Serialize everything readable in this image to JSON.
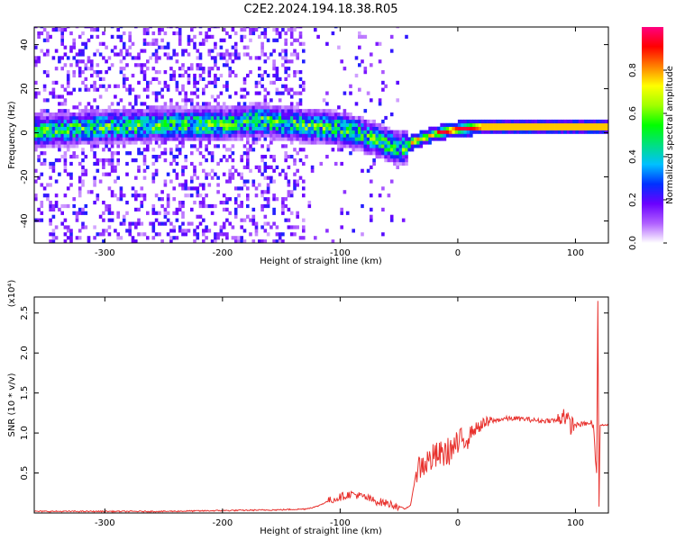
{
  "title": "C2E2.2024.194.18.38.R05",
  "chart_data": [
    {
      "type": "heatmap",
      "xlabel": "Height of straight line (km)",
      "ylabel": "Frequency (Hz)",
      "xlim": [
        -360,
        128
      ],
      "ylim": [
        -50,
        48
      ],
      "xticks": [
        -300,
        -200,
        -100,
        0,
        100
      ],
      "yticks": [
        -40,
        -20,
        0,
        20,
        40
      ],
      "colorbar": {
        "label": "Normalized spectral amplitude",
        "range": [
          0,
          1
        ],
        "ticks": [
          0.0,
          0.2,
          0.4,
          0.6,
          0.8
        ],
        "colors": [
          "#ffffff",
          "#b060ff",
          "#6a00ff",
          "#0030ff",
          "#00c0ff",
          "#00e080",
          "#00ff00",
          "#a0ff00",
          "#ffff00",
          "#ff8000",
          "#ff0000",
          "#ff0080"
        ]
      },
      "ridge": {
        "x": [
          -360,
          -300,
          -250,
          -200,
          -170,
          -140,
          -120,
          -100,
          -80,
          -60,
          -50,
          -45,
          -40,
          -30,
          -20,
          -10,
          0,
          20,
          50,
          80,
          100,
          120,
          128
        ],
        "frequency": [
          0,
          2,
          3,
          3,
          5,
          3,
          2,
          1,
          -2,
          -6,
          -8,
          -7,
          -5,
          -3,
          -1,
          0,
          1,
          2,
          2,
          2,
          2,
          2,
          2
        ]
      }
    },
    {
      "type": "line",
      "xlabel": "Height of straight line (km)",
      "ylabel": "SNR (10 * v/v)",
      "y_multiplier": "(x10⁴)",
      "xlim": [
        -360,
        128
      ],
      "ylim": [
        0,
        2.7
      ],
      "xticks": [
        -300,
        -200,
        -100,
        0,
        100
      ],
      "yticks": [
        0.5,
        1.0,
        1.5,
        2.0,
        2.5
      ],
      "series": [
        {
          "color": "#e8322e",
          "x": [
            -360,
            -250,
            -200,
            -150,
            -130,
            -120,
            -110,
            -100,
            -90,
            -80,
            -70,
            -60,
            -50,
            -45,
            -40,
            -35,
            -30,
            -25,
            -20,
            -10,
            0,
            10,
            20,
            30,
            40,
            50,
            60,
            70,
            80,
            85,
            90,
            95,
            100,
            110,
            115,
            118,
            119,
            120,
            121,
            125,
            128
          ],
          "values": [
            0.02,
            0.02,
            0.03,
            0.04,
            0.05,
            0.08,
            0.15,
            0.2,
            0.24,
            0.2,
            0.15,
            0.12,
            0.08,
            0.05,
            0.1,
            0.55,
            0.6,
            0.65,
            0.7,
            0.75,
            0.85,
            1.0,
            1.1,
            1.15,
            1.18,
            1.18,
            1.17,
            1.15,
            1.16,
            1.15,
            1.25,
            1.1,
            1.1,
            1.12,
            1.1,
            0.5,
            2.65,
            0.08,
            1.1,
            1.1,
            1.1
          ]
        }
      ]
    }
  ]
}
